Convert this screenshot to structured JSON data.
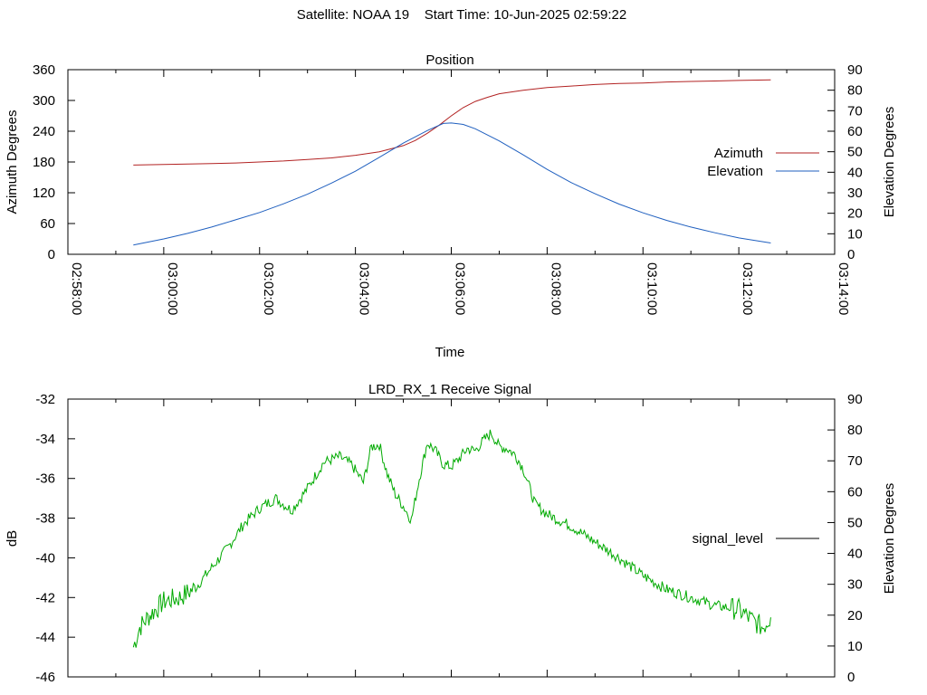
{
  "header": {
    "satellite_label": "Satellite: NOAA 19",
    "start_time_label": "Start Time: 10-Jun-2025 02:59:22"
  },
  "chart_data": [
    {
      "type": "line",
      "title": "Position",
      "xlabel": "Time",
      "ylabel": "Azimuth Degrees",
      "y2label": "Elevation Degrees",
      "xlim": [
        "02:58:00",
        "03:14:00"
      ],
      "ylim": [
        0,
        360
      ],
      "y2lim": [
        0,
        90
      ],
      "xticks": [
        "02:58:00",
        "03:00:00",
        "03:02:00",
        "03:04:00",
        "03:06:00",
        "03:08:00",
        "03:10:00",
        "03:12:00",
        "03:14:00"
      ],
      "yticks": [
        0,
        60,
        120,
        180,
        240,
        300,
        360
      ],
      "y2ticks": [
        0,
        10,
        20,
        30,
        40,
        50,
        60,
        70,
        80,
        90
      ],
      "grid": false,
      "legend_position": "right",
      "series": [
        {
          "name": "Azimuth",
          "axis": "y",
          "color": "#b22222",
          "x": [
            "02:59:22",
            "03:00:00",
            "03:00:30",
            "03:01:00",
            "03:01:30",
            "03:02:00",
            "03:02:30",
            "03:03:00",
            "03:03:30",
            "03:04:00",
            "03:04:30",
            "03:05:00",
            "03:05:15",
            "03:05:30",
            "03:05:45",
            "03:06:00",
            "03:06:15",
            "03:06:30",
            "03:06:45",
            "03:07:00",
            "03:07:30",
            "03:08:00",
            "03:08:30",
            "03:09:00",
            "03:09:30",
            "03:10:00",
            "03:10:30",
            "03:11:00",
            "03:11:30",
            "03:12:00",
            "03:12:40"
          ],
          "y": [
            174,
            175,
            176,
            177,
            178,
            180,
            182,
            185,
            188,
            193,
            200,
            212,
            222,
            236,
            252,
            270,
            286,
            298,
            306,
            313,
            320,
            325,
            328,
            331,
            333,
            334,
            336,
            337,
            338,
            339,
            340
          ]
        },
        {
          "name": "Elevation",
          "axis": "y2",
          "color": "#1f5fbf",
          "x": [
            "02:59:22",
            "03:00:00",
            "03:00:30",
            "03:01:00",
            "03:01:30",
            "03:02:00",
            "03:02:30",
            "03:03:00",
            "03:03:30",
            "03:04:00",
            "03:04:30",
            "03:05:00",
            "03:05:30",
            "03:05:50",
            "03:06:00",
            "03:06:15",
            "03:06:30",
            "03:07:00",
            "03:07:30",
            "03:08:00",
            "03:08:30",
            "03:09:00",
            "03:09:30",
            "03:10:00",
            "03:10:30",
            "03:11:00",
            "03:11:30",
            "03:12:00",
            "03:12:40"
          ],
          "y": [
            4.5,
            7.5,
            10.2,
            13.3,
            16.8,
            20.4,
            24.6,
            29.3,
            34.7,
            40.5,
            47.3,
            54.2,
            60.3,
            63.8,
            64.0,
            63.3,
            61.2,
            55.3,
            48.5,
            41.4,
            35.0,
            29.5,
            24.5,
            20.2,
            16.5,
            13.3,
            10.5,
            8.0,
            5.5
          ]
        }
      ]
    },
    {
      "type": "line",
      "title": "LRD_RX_1 Receive Signal",
      "ylabel": "dB",
      "y2label": "Elevation Degrees",
      "xlim": [
        "02:58:00",
        "03:14:00"
      ],
      "ylim": [
        -46,
        -32
      ],
      "y2lim": [
        0,
        90
      ],
      "yticks": [
        -46,
        -44,
        -42,
        -40,
        -38,
        -36,
        -34,
        -32
      ],
      "y2ticks": [
        0,
        10,
        20,
        30,
        40,
        50,
        60,
        70,
        80,
        90
      ],
      "grid": false,
      "legend_position": "right",
      "series": [
        {
          "name": "signal_level",
          "axis": "y",
          "color": "#00aa00",
          "x": [
            "02:59:22",
            "02:59:30",
            "02:59:40",
            "02:59:50",
            "03:00:00",
            "03:00:20",
            "03:00:40",
            "03:01:00",
            "03:01:20",
            "03:01:40",
            "03:02:00",
            "03:02:20",
            "03:02:40",
            "03:03:00",
            "03:03:20",
            "03:03:40",
            "03:03:55",
            "03:04:10",
            "03:04:20",
            "03:04:30",
            "03:04:40",
            "03:04:50",
            "03:05:00",
            "03:05:10",
            "03:05:20",
            "03:05:30",
            "03:05:40",
            "03:05:50",
            "03:06:00",
            "03:06:10",
            "03:06:20",
            "03:06:30",
            "03:06:40",
            "03:06:50",
            "03:07:00",
            "03:07:10",
            "03:07:20",
            "03:07:30",
            "03:07:45",
            "03:08:00",
            "03:08:15",
            "03:08:30",
            "03:09:00",
            "03:09:30",
            "03:10:00",
            "03:10:30",
            "03:11:00",
            "03:11:30",
            "03:12:00",
            "03:12:15",
            "03:12:30",
            "03:12:40"
          ],
          "y": [
            -44.5,
            -43.5,
            -43.0,
            -42.6,
            -42.2,
            -42.0,
            -41.5,
            -40.5,
            -39.5,
            -38.3,
            -37.5,
            -37.0,
            -37.6,
            -36.5,
            -35.2,
            -34.9,
            -35.3,
            -36.2,
            -34.4,
            -34.3,
            -35.8,
            -36.8,
            -37.4,
            -38.1,
            -36.0,
            -34.2,
            -34.6,
            -35.3,
            -35.4,
            -35.0,
            -34.5,
            -34.6,
            -34.1,
            -33.7,
            -34.4,
            -34.5,
            -34.8,
            -35.5,
            -37.3,
            -37.8,
            -38.1,
            -38.4,
            -39.2,
            -40.0,
            -40.9,
            -41.6,
            -42.0,
            -42.4,
            -42.6,
            -43.1,
            -43.5,
            -43.0
          ]
        }
      ]
    }
  ]
}
